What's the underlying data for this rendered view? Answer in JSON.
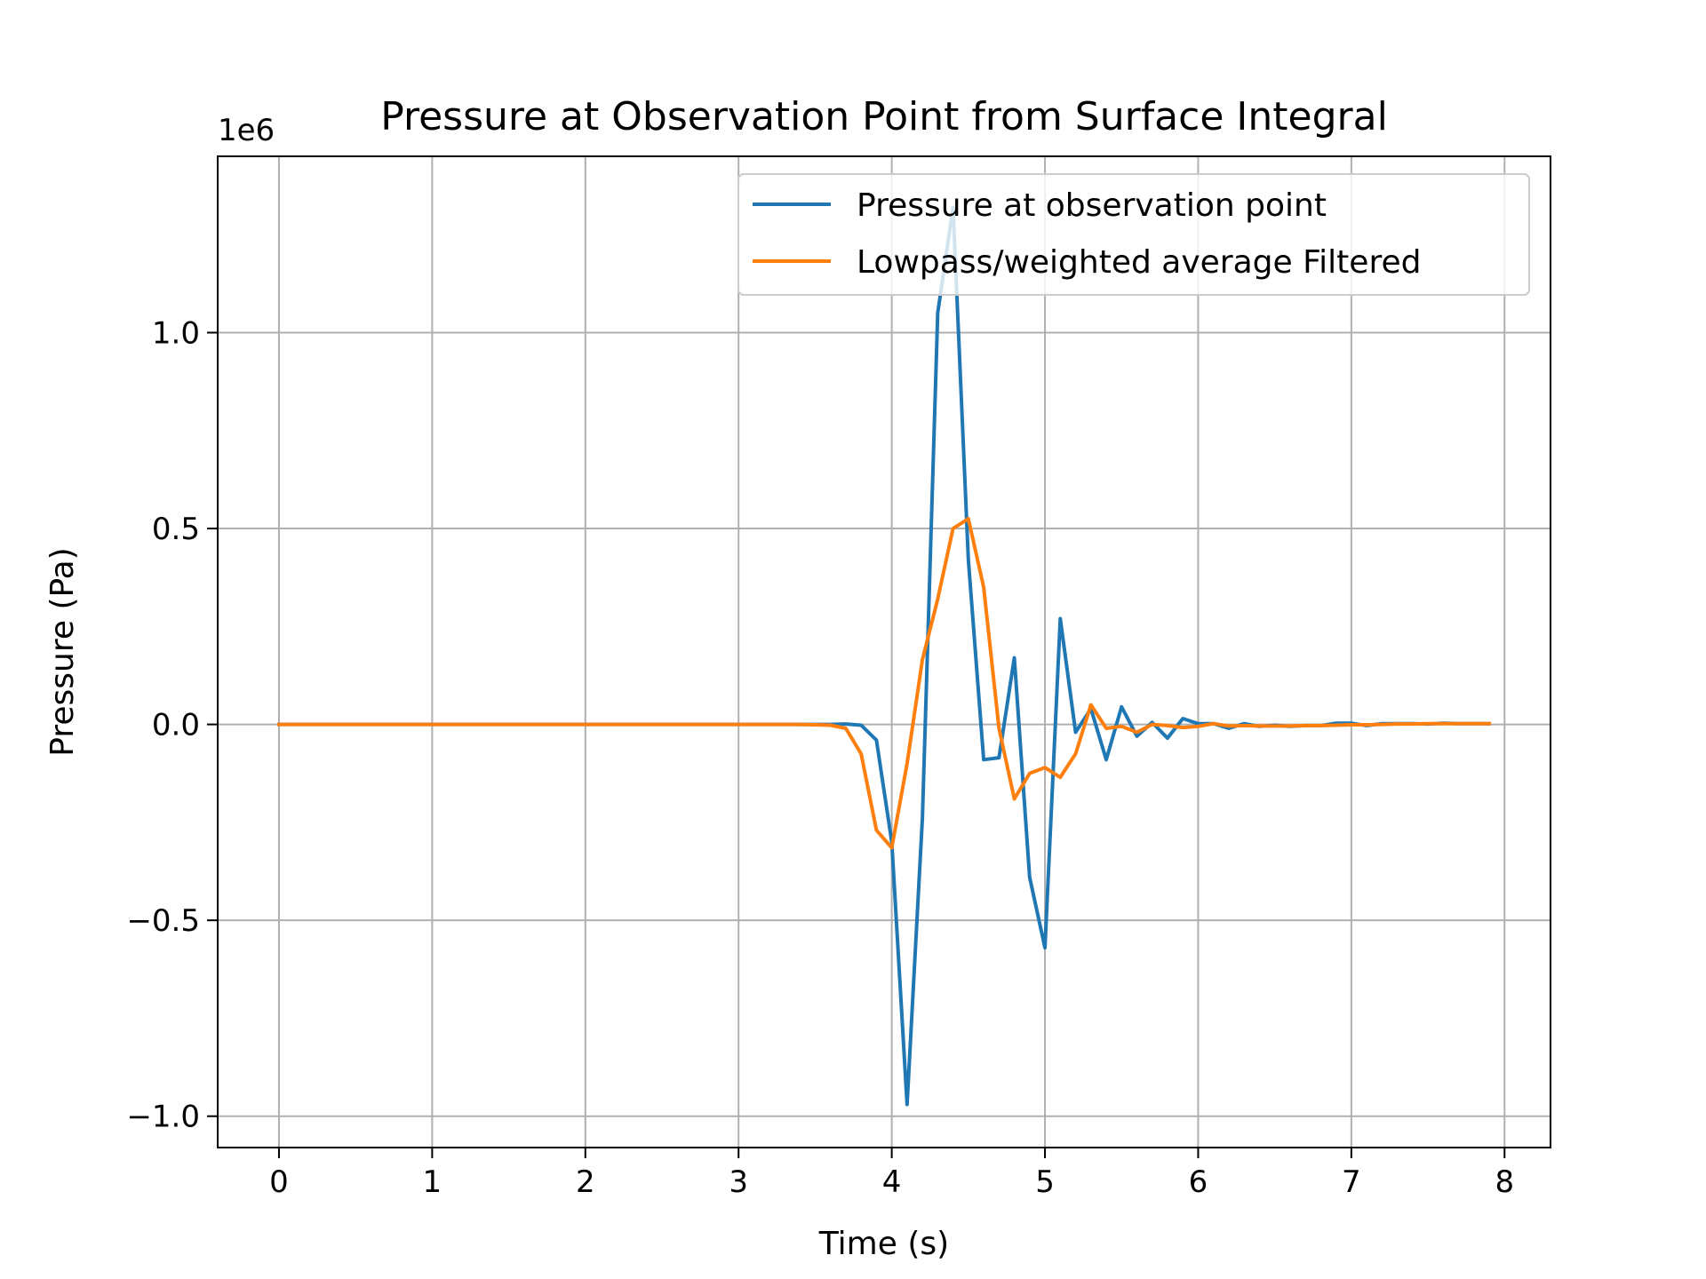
{
  "chart_data": {
    "type": "line",
    "title": "Pressure at Observation Point from Surface Integral",
    "xlabel": "Time (s)",
    "ylabel": "Pressure (Pa)",
    "y_offset_label": "1e6",
    "y_scale_factor": 1000000,
    "xlim": [
      -0.4,
      8.3
    ],
    "ylim": [
      -1.08,
      1.45
    ],
    "x_ticks": [
      0,
      1,
      2,
      3,
      4,
      5,
      6,
      7,
      8
    ],
    "x_tick_labels": [
      "0",
      "1",
      "2",
      "3",
      "4",
      "5",
      "6",
      "7",
      "8"
    ],
    "y_ticks": [
      -1.0,
      -0.5,
      0.0,
      0.5,
      1.0
    ],
    "y_tick_labels": [
      "−1.0",
      "−0.5",
      "0.0",
      "0.5",
      "1.0"
    ],
    "grid": true,
    "legend_position": "top-right",
    "x": [
      0,
      0.1,
      0.2,
      0.3,
      0.4,
      0.5,
      0.6,
      0.7,
      0.8,
      0.9,
      1.0,
      1.1,
      1.2,
      1.3,
      1.4,
      1.5,
      1.6,
      1.7,
      1.8,
      1.9,
      2.0,
      2.1,
      2.2,
      2.3,
      2.4,
      2.5,
      2.6,
      2.7,
      2.8,
      2.9,
      3.0,
      3.1,
      3.2,
      3.3,
      3.4,
      3.5,
      3.6,
      3.7,
      3.8,
      3.9,
      4.0,
      4.1,
      4.2,
      4.3,
      4.4,
      4.5,
      4.6,
      4.7,
      4.8,
      4.9,
      5.0,
      5.1,
      5.2,
      5.3,
      5.4,
      5.5,
      5.6,
      5.7,
      5.8,
      5.9,
      6.0,
      6.1,
      6.2,
      6.3,
      6.4,
      6.5,
      6.6,
      6.7,
      6.8,
      6.9,
      7.0,
      7.1,
      7.2,
      7.3,
      7.4,
      7.5,
      7.6,
      7.7,
      7.8,
      7.9
    ],
    "series": [
      {
        "name": "Pressure at observation point",
        "color": "#1f77b4",
        "values": [
          0,
          0,
          0,
          0,
          0,
          0,
          0,
          0,
          0,
          0,
          0,
          0,
          0,
          0,
          0,
          0,
          0,
          0,
          0,
          0,
          0,
          0,
          0,
          0,
          0,
          0,
          0,
          0,
          0,
          0,
          0,
          0,
          0,
          0,
          0,
          0,
          0,
          0.001,
          -0.002,
          -0.04,
          -0.3,
          -0.97,
          -0.24,
          1.05,
          1.32,
          0.42,
          -0.09,
          -0.085,
          0.17,
          -0.39,
          -0.57,
          0.27,
          -0.02,
          0.04,
          -0.09,
          0.045,
          -0.03,
          0.005,
          -0.035,
          0.015,
          0.002,
          0.002,
          -0.01,
          0.002,
          -0.005,
          -0.002,
          -0.005,
          -0.003,
          -0.003,
          0.003,
          0.003,
          -0.003,
          0.002,
          0.002,
          0.002,
          0.001,
          0.003,
          0.002,
          0.002,
          0.002
        ]
      },
      {
        "name": "Lowpass/weighted average Filtered",
        "color": "#ff7f0e",
        "values": [
          0,
          0,
          0,
          0,
          0,
          0,
          0,
          0,
          0,
          0,
          0,
          0,
          0,
          0,
          0,
          0,
          0,
          0,
          0,
          0,
          0,
          0,
          0,
          0,
          0,
          0,
          0,
          0,
          0,
          0,
          0,
          0,
          0,
          0,
          0,
          -0.001,
          -0.002,
          -0.01,
          -0.075,
          -0.27,
          -0.315,
          -0.1,
          0.165,
          0.32,
          0.5,
          0.525,
          0.35,
          -0.01,
          -0.19,
          -0.125,
          -0.11,
          -0.135,
          -0.075,
          0.05,
          -0.01,
          -0.005,
          -0.02,
          0,
          -0.003,
          -0.008,
          -0.005,
          0.002,
          -0.004,
          -0.003,
          -0.004,
          -0.004,
          -0.004,
          -0.003,
          -0.003,
          -0.002,
          -0.001,
          -0.001,
          0,
          0.001,
          0.001,
          0.002,
          0.002,
          0.002,
          0.002,
          0.002
        ]
      }
    ]
  }
}
